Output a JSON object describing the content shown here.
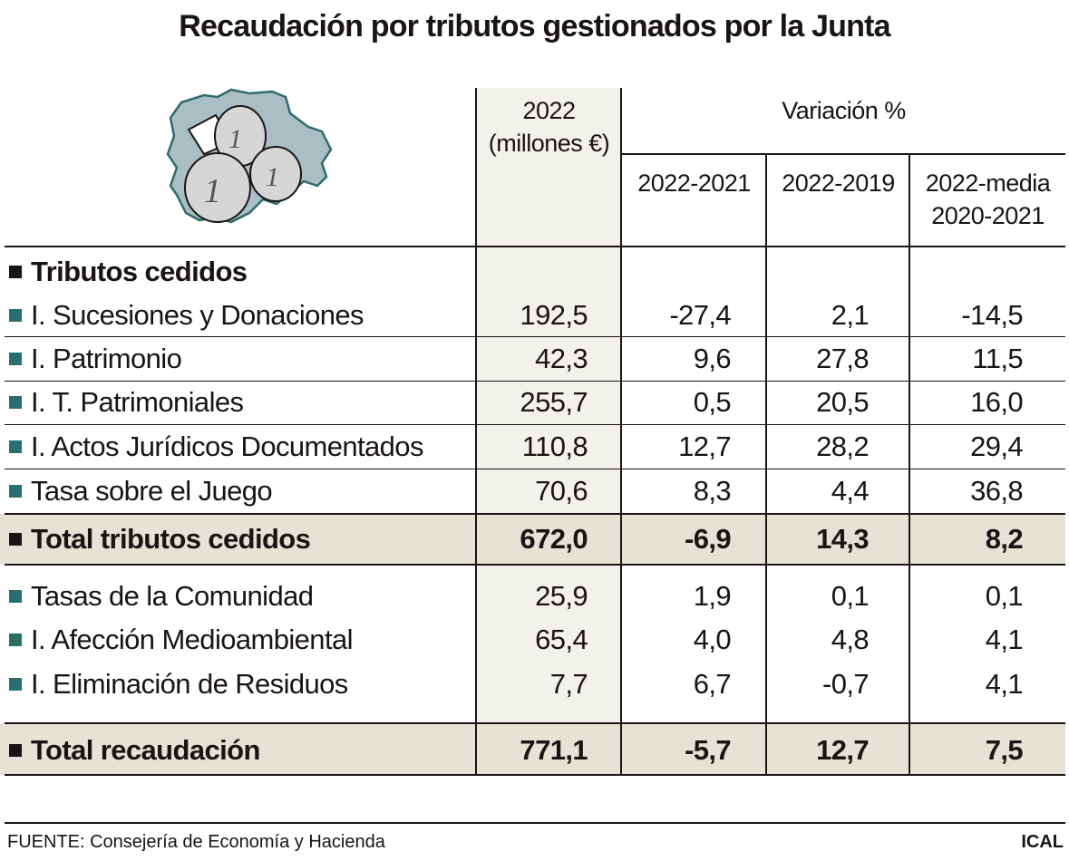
{
  "title": "Recaudación por tributos gestionados por la Junta",
  "chart_data": {
    "type": "table",
    "title": "Recaudación por tributos gestionados por la Junta",
    "columns": {
      "value": "2022\n(millones €)",
      "variation_group": "Variación %",
      "var": [
        "2022-2021",
        "2022-2019",
        "2022-media\n2020-2021"
      ]
    },
    "rows": [
      {
        "label": "Tributos cedidos",
        "kind": "section"
      },
      {
        "label": "I. Sucesiones y Donaciones",
        "values": [
          "192,5",
          "-27,4",
          "2,1",
          "-14,5"
        ]
      },
      {
        "label": "I. Patrimonio",
        "values": [
          "42,3",
          "9,6",
          "27,8",
          "11,5"
        ]
      },
      {
        "label": "I. T. Patrimoniales",
        "values": [
          "255,7",
          "0,5",
          "20,5",
          "16,0"
        ]
      },
      {
        "label": "I. Actos Jurídicos Documentados",
        "values": [
          "110,8",
          "12,7",
          "28,2",
          "29,4"
        ]
      },
      {
        "label": "Tasa sobre el Juego",
        "values": [
          "70,6",
          "8,3",
          "4,4",
          "36,8"
        ]
      },
      {
        "label": "Total tributos cedidos",
        "kind": "total",
        "values": [
          "672,0",
          "-6,9",
          "14,3",
          "8,2"
        ]
      },
      {
        "label": "Tasas de la Comunidad",
        "values": [
          "25,9",
          "1,9",
          "0,1",
          "0,1"
        ]
      },
      {
        "label": "I. Afección Medioambiental",
        "values": [
          "65,4",
          "4,0",
          "4,8",
          "4,1"
        ]
      },
      {
        "label": "I. Eliminación de Residuos",
        "values": [
          "7,7",
          "6,7",
          "-0,7",
          "4,1"
        ]
      },
      {
        "label": "Total recaudación",
        "kind": "total",
        "values": [
          "771,1",
          "-5,7",
          "12,7",
          "7,5"
        ]
      }
    ]
  },
  "header": {
    "value_line1": "2022",
    "value_line2": "(millones €)",
    "variation": "Variación %",
    "var1": "2022-2021",
    "var2": "2022-2019",
    "var3_line1": "2022-media",
    "var3_line2": "2020-2021"
  },
  "illustration": "map-with-euro-coins-icon",
  "colors": {
    "bullet": "#2b6e70",
    "value_column": "#f2f1ea",
    "total_row": "#e6e3d6",
    "map_fill": "#a9bfc4"
  },
  "footer": {
    "source": "FUENTE: Consejería de Economía y Hacienda",
    "brand": "ICAL"
  }
}
